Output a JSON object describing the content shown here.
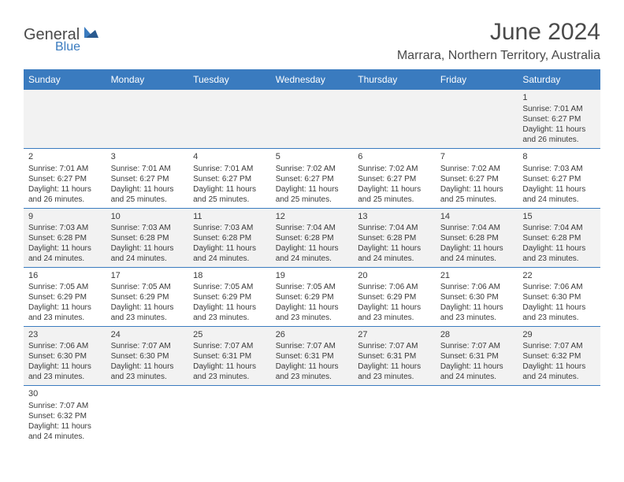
{
  "logo": {
    "text1": "General",
    "text2": "Blue"
  },
  "title": "June 2024",
  "location": "Marrara, Northern Territory, Australia",
  "colors": {
    "header_bg": "#3a7bbf",
    "header_text": "#ffffff",
    "alt_row_bg": "#f2f2f2",
    "text": "#3a3a3a",
    "logo_gray": "#4a4a4a",
    "logo_blue": "#3a7bbf"
  },
  "day_headers": [
    "Sunday",
    "Monday",
    "Tuesday",
    "Wednesday",
    "Thursday",
    "Friday",
    "Saturday"
  ],
  "weeks": [
    [
      null,
      null,
      null,
      null,
      null,
      null,
      {
        "n": "1",
        "sr": "Sunrise: 7:01 AM",
        "ss": "Sunset: 6:27 PM",
        "d1": "Daylight: 11 hours",
        "d2": "and 26 minutes."
      }
    ],
    [
      {
        "n": "2",
        "sr": "Sunrise: 7:01 AM",
        "ss": "Sunset: 6:27 PM",
        "d1": "Daylight: 11 hours",
        "d2": "and 26 minutes."
      },
      {
        "n": "3",
        "sr": "Sunrise: 7:01 AM",
        "ss": "Sunset: 6:27 PM",
        "d1": "Daylight: 11 hours",
        "d2": "and 25 minutes."
      },
      {
        "n": "4",
        "sr": "Sunrise: 7:01 AM",
        "ss": "Sunset: 6:27 PM",
        "d1": "Daylight: 11 hours",
        "d2": "and 25 minutes."
      },
      {
        "n": "5",
        "sr": "Sunrise: 7:02 AM",
        "ss": "Sunset: 6:27 PM",
        "d1": "Daylight: 11 hours",
        "d2": "and 25 minutes."
      },
      {
        "n": "6",
        "sr": "Sunrise: 7:02 AM",
        "ss": "Sunset: 6:27 PM",
        "d1": "Daylight: 11 hours",
        "d2": "and 25 minutes."
      },
      {
        "n": "7",
        "sr": "Sunrise: 7:02 AM",
        "ss": "Sunset: 6:27 PM",
        "d1": "Daylight: 11 hours",
        "d2": "and 25 minutes."
      },
      {
        "n": "8",
        "sr": "Sunrise: 7:03 AM",
        "ss": "Sunset: 6:27 PM",
        "d1": "Daylight: 11 hours",
        "d2": "and 24 minutes."
      }
    ],
    [
      {
        "n": "9",
        "sr": "Sunrise: 7:03 AM",
        "ss": "Sunset: 6:28 PM",
        "d1": "Daylight: 11 hours",
        "d2": "and 24 minutes."
      },
      {
        "n": "10",
        "sr": "Sunrise: 7:03 AM",
        "ss": "Sunset: 6:28 PM",
        "d1": "Daylight: 11 hours",
        "d2": "and 24 minutes."
      },
      {
        "n": "11",
        "sr": "Sunrise: 7:03 AM",
        "ss": "Sunset: 6:28 PM",
        "d1": "Daylight: 11 hours",
        "d2": "and 24 minutes."
      },
      {
        "n": "12",
        "sr": "Sunrise: 7:04 AM",
        "ss": "Sunset: 6:28 PM",
        "d1": "Daylight: 11 hours",
        "d2": "and 24 minutes."
      },
      {
        "n": "13",
        "sr": "Sunrise: 7:04 AM",
        "ss": "Sunset: 6:28 PM",
        "d1": "Daylight: 11 hours",
        "d2": "and 24 minutes."
      },
      {
        "n": "14",
        "sr": "Sunrise: 7:04 AM",
        "ss": "Sunset: 6:28 PM",
        "d1": "Daylight: 11 hours",
        "d2": "and 24 minutes."
      },
      {
        "n": "15",
        "sr": "Sunrise: 7:04 AM",
        "ss": "Sunset: 6:28 PM",
        "d1": "Daylight: 11 hours",
        "d2": "and 23 minutes."
      }
    ],
    [
      {
        "n": "16",
        "sr": "Sunrise: 7:05 AM",
        "ss": "Sunset: 6:29 PM",
        "d1": "Daylight: 11 hours",
        "d2": "and 23 minutes."
      },
      {
        "n": "17",
        "sr": "Sunrise: 7:05 AM",
        "ss": "Sunset: 6:29 PM",
        "d1": "Daylight: 11 hours",
        "d2": "and 23 minutes."
      },
      {
        "n": "18",
        "sr": "Sunrise: 7:05 AM",
        "ss": "Sunset: 6:29 PM",
        "d1": "Daylight: 11 hours",
        "d2": "and 23 minutes."
      },
      {
        "n": "19",
        "sr": "Sunrise: 7:05 AM",
        "ss": "Sunset: 6:29 PM",
        "d1": "Daylight: 11 hours",
        "d2": "and 23 minutes."
      },
      {
        "n": "20",
        "sr": "Sunrise: 7:06 AM",
        "ss": "Sunset: 6:29 PM",
        "d1": "Daylight: 11 hours",
        "d2": "and 23 minutes."
      },
      {
        "n": "21",
        "sr": "Sunrise: 7:06 AM",
        "ss": "Sunset: 6:30 PM",
        "d1": "Daylight: 11 hours",
        "d2": "and 23 minutes."
      },
      {
        "n": "22",
        "sr": "Sunrise: 7:06 AM",
        "ss": "Sunset: 6:30 PM",
        "d1": "Daylight: 11 hours",
        "d2": "and 23 minutes."
      }
    ],
    [
      {
        "n": "23",
        "sr": "Sunrise: 7:06 AM",
        "ss": "Sunset: 6:30 PM",
        "d1": "Daylight: 11 hours",
        "d2": "and 23 minutes."
      },
      {
        "n": "24",
        "sr": "Sunrise: 7:07 AM",
        "ss": "Sunset: 6:30 PM",
        "d1": "Daylight: 11 hours",
        "d2": "and 23 minutes."
      },
      {
        "n": "25",
        "sr": "Sunrise: 7:07 AM",
        "ss": "Sunset: 6:31 PM",
        "d1": "Daylight: 11 hours",
        "d2": "and 23 minutes."
      },
      {
        "n": "26",
        "sr": "Sunrise: 7:07 AM",
        "ss": "Sunset: 6:31 PM",
        "d1": "Daylight: 11 hours",
        "d2": "and 23 minutes."
      },
      {
        "n": "27",
        "sr": "Sunrise: 7:07 AM",
        "ss": "Sunset: 6:31 PM",
        "d1": "Daylight: 11 hours",
        "d2": "and 23 minutes."
      },
      {
        "n": "28",
        "sr": "Sunrise: 7:07 AM",
        "ss": "Sunset: 6:31 PM",
        "d1": "Daylight: 11 hours",
        "d2": "and 24 minutes."
      },
      {
        "n": "29",
        "sr": "Sunrise: 7:07 AM",
        "ss": "Sunset: 6:32 PM",
        "d1": "Daylight: 11 hours",
        "d2": "and 24 minutes."
      }
    ],
    [
      {
        "n": "30",
        "sr": "Sunrise: 7:07 AM",
        "ss": "Sunset: 6:32 PM",
        "d1": "Daylight: 11 hours",
        "d2": "and 24 minutes."
      },
      null,
      null,
      null,
      null,
      null,
      null
    ]
  ]
}
